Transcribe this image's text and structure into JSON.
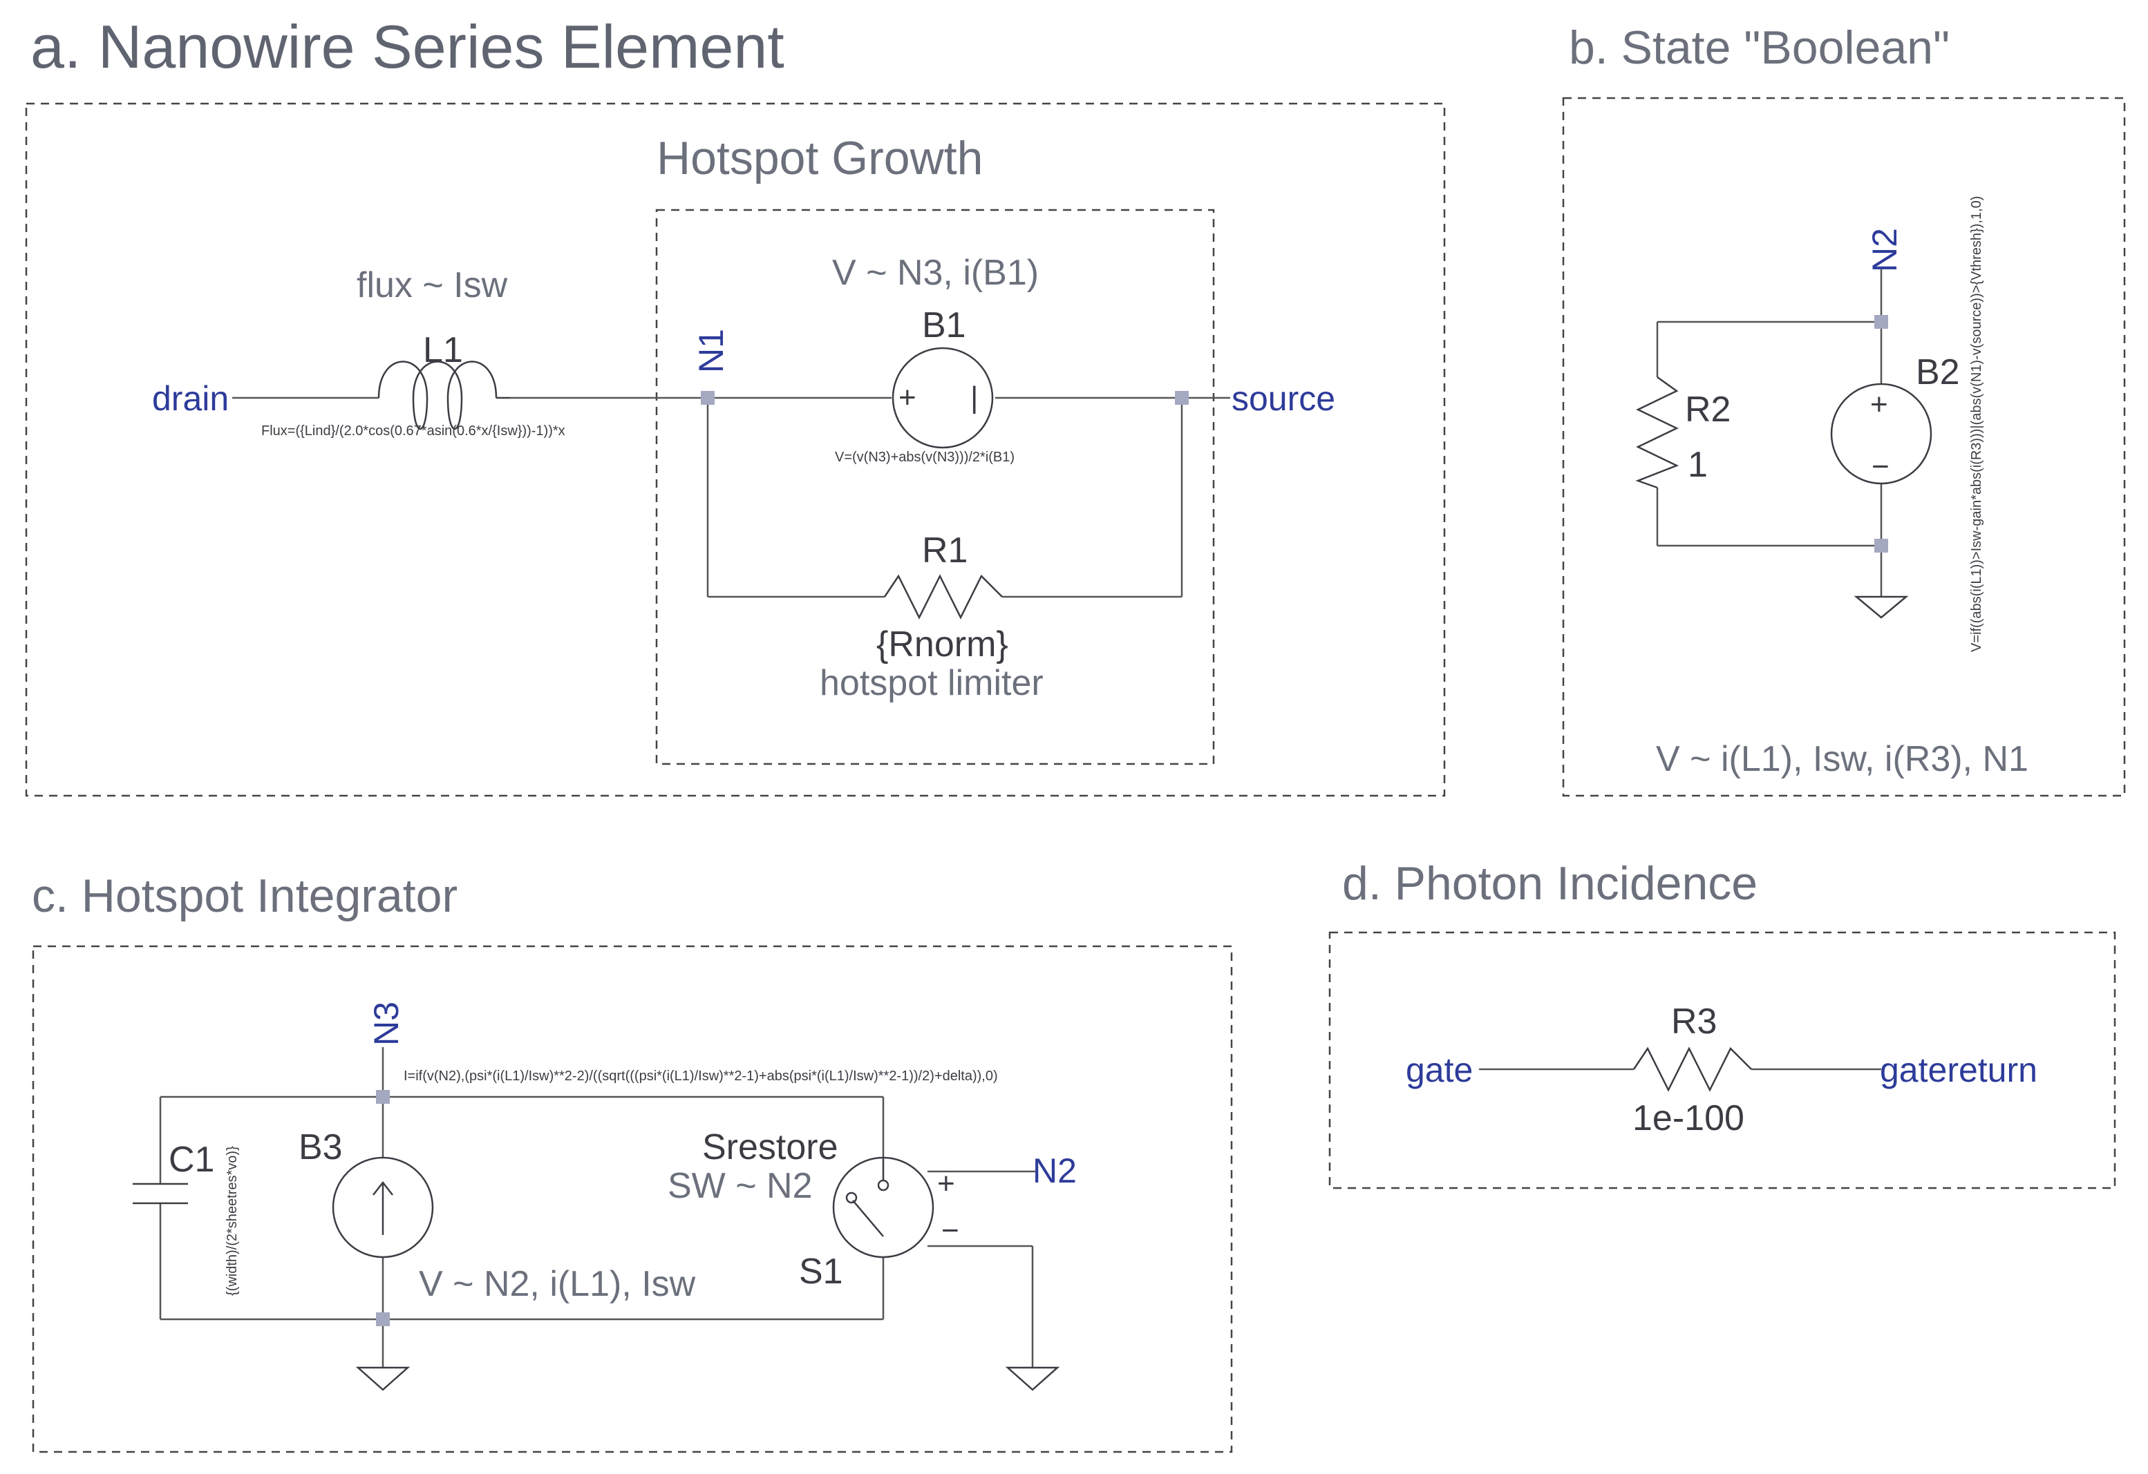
{
  "sections": {
    "a": {
      "title": "a. Nanowire Series Element",
      "sub_title": "Hotspot Growth",
      "flux_note": "flux ~ Isw",
      "drain": "drain",
      "source": "source",
      "node_n1": "N1",
      "l1_label": "L1",
      "l1_eq": "Flux=({Lind}/(2.0*cos(0.67*asin(0.6*x/{Isw}))-1))*x",
      "b1_note": "V ~ N3, i(B1)",
      "b1_label": "B1",
      "b1_eq": "V=(v(N3)+abs(v(N3)))/2*i(B1)",
      "plus": "+",
      "bar": "|",
      "r1_label": "R1",
      "r1_value": "{Rnorm}",
      "r1_note": "hotspot limiter"
    },
    "b": {
      "title": "b. State \"Boolean\"",
      "node_n2": "N2",
      "r2_label": "R2",
      "r2_value": "1",
      "b2_label": "B2",
      "plus": "+",
      "minus": "−",
      "b2_eq": "V=if((abs(i(L1))>Isw-gain*abs(i(R3)))|(abs(v(N1)-v(source))>{Vthresh}),1,0)",
      "note": "V ~ i(L1), Isw, i(R3), N1"
    },
    "c": {
      "title": "c. Hotspot Integrator",
      "node_n3": "N3",
      "i_eq": "I=if(v(N2),(psi*(i(L1)/Isw)**2-2)/((sqrt(((psi*(i(L1)/Isw)**2-1)+abs(psi*(i(L1)/Isw)**2-1))/2)+delta)),0)",
      "c1_label": "C1",
      "c1_eq": "{(width)/(2*sheetres*vo)}",
      "b3_label": "B3",
      "b3_note": "V ~ N2, i(L1), Isw",
      "srestore": "Srestore",
      "sw_note": "SW ~ N2",
      "s1_label": "S1",
      "node_n2": "N2",
      "plus": "+",
      "minus": "−"
    },
    "d": {
      "title": "d. Photon Incidence",
      "r3_label": "R3",
      "r3_value": "1e-100",
      "gate": "gate",
      "gatereturn": "gatereturn"
    }
  }
}
